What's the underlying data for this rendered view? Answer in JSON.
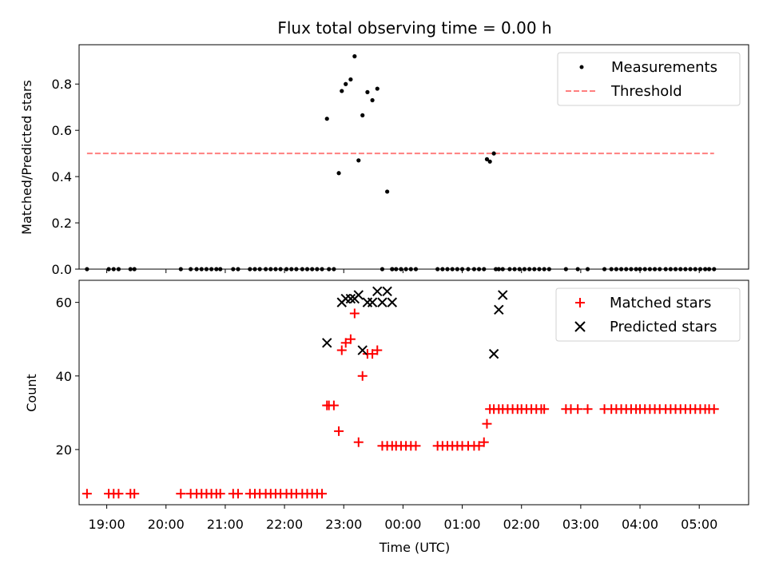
{
  "chart_data": [
    {
      "type": "scatter",
      "title": "Flux total observing time = 0.00 h",
      "xlabel": "",
      "ylabel": "Matched/Predicted stars",
      "xlim": [
        "18:32",
        "05:50"
      ],
      "ylim": [
        0,
        0.97
      ],
      "yticks": [
        0.0,
        0.2,
        0.4,
        0.6,
        0.8
      ],
      "ytick_labels": [
        "0.0",
        "0.2",
        "0.4",
        "0.6",
        "0.8"
      ],
      "legend_position": "top-right",
      "series": [
        {
          "name": "Measurements",
          "kind": "scatter",
          "color": "#000000",
          "x": [
            "18:40",
            "19:02",
            "19:07",
            "19:12",
            "19:24",
            "19:28",
            "20:15",
            "20:25",
            "20:31",
            "20:36",
            "20:41",
            "20:46",
            "20:51",
            "20:55",
            "21:08",
            "21:13",
            "21:25",
            "21:30",
            "21:35",
            "21:41",
            "21:46",
            "21:51",
            "21:56",
            "22:02",
            "22:07",
            "22:12",
            "22:18",
            "22:23",
            "22:28",
            "22:33",
            "22:38",
            "22:43",
            "22:45",
            "22:50",
            "22:55",
            "22:58",
            "23:02",
            "23:07",
            "23:11",
            "23:15",
            "23:19",
            "23:24",
            "23:29",
            "23:34",
            "23:39",
            "23:44",
            "23:49",
            "23:49",
            "23:53",
            "23:58",
            "00:03",
            "00:08",
            "00:13",
            "00:35",
            "00:40",
            "00:45",
            "00:50",
            "00:55",
            "01:00",
            "01:06",
            "01:12",
            "01:17",
            "01:22",
            "01:25",
            "01:28",
            "01:32",
            "01:34",
            "01:37",
            "01:41",
            "01:48",
            "01:53",
            "01:58",
            "02:03",
            "02:08",
            "02:13",
            "02:18",
            "02:23",
            "02:28",
            "02:45",
            "02:57",
            "03:07",
            "03:24",
            "03:31",
            "03:36",
            "03:41",
            "03:46",
            "03:51",
            "03:56",
            "04:00",
            "04:05",
            "04:10",
            "04:15",
            "04:20",
            "04:26",
            "04:31",
            "04:36",
            "04:41",
            "04:46",
            "04:51",
            "04:56",
            "05:01",
            "05:06",
            "05:10",
            "05:15"
          ],
          "y": [
            0,
            0,
            0,
            0,
            0,
            0,
            0,
            0,
            0,
            0,
            0,
            0,
            0,
            0,
            0,
            0,
            0,
            0,
            0,
            0,
            0,
            0,
            0,
            0,
            0,
            0,
            0,
            0,
            0,
            0,
            0,
            0.65,
            0,
            0,
            0.415,
            0.77,
            0.8,
            0.82,
            0.92,
            0.47,
            0.665,
            0.765,
            0.73,
            0.78,
            0,
            0.335,
            0,
            0,
            0,
            0,
            0,
            0,
            0,
            0,
            0,
            0,
            0,
            0,
            0,
            0,
            0,
            0,
            0,
            0.475,
            0.465,
            0.5,
            0,
            0,
            0,
            0,
            0,
            0,
            0,
            0,
            0,
            0,
            0,
            0,
            0,
            0,
            0,
            0,
            0,
            0,
            0,
            0,
            0,
            0,
            0,
            0,
            0,
            0,
            0,
            0,
            0,
            0,
            0,
            0,
            0,
            0,
            0,
            0,
            0,
            0
          ],
          "y_note": "measurement values"
        },
        {
          "name": "Threshold",
          "kind": "dashed-line",
          "color": "#ff7f7f",
          "x": [
            "18:40",
            "05:15"
          ],
          "y": [
            0.5,
            0.5
          ]
        }
      ]
    },
    {
      "type": "scatter",
      "title": "",
      "xlabel": "Time (UTC)",
      "ylabel": "Count",
      "xlim": [
        "18:32",
        "05:50"
      ],
      "ylim": [
        5,
        66
      ],
      "yticks": [
        20,
        40,
        60
      ],
      "ytick_labels": [
        "20",
        "40",
        "60"
      ],
      "xticks": [
        "19:00",
        "20:00",
        "21:00",
        "22:00",
        "23:00",
        "00:00",
        "01:00",
        "02:00",
        "03:00",
        "04:00",
        "05:00"
      ],
      "xtick_labels": [
        "19:00",
        "20:00",
        "21:00",
        "22:00",
        "23:00",
        "00:00",
        "01:00",
        "02:00",
        "03:00",
        "04:00",
        "05:00"
      ],
      "legend_position": "top-right",
      "series": [
        {
          "name": "Matched stars",
          "kind": "plus",
          "color": "#ff0000",
          "x": [
            "18:40",
            "19:02",
            "19:07",
            "19:12",
            "19:24",
            "19:28",
            "20:15",
            "20:25",
            "20:31",
            "20:36",
            "20:41",
            "20:46",
            "20:51",
            "20:55",
            "21:08",
            "21:13",
            "21:25",
            "21:30",
            "21:35",
            "21:41",
            "21:46",
            "21:51",
            "21:56",
            "22:02",
            "22:07",
            "22:12",
            "22:18",
            "22:23",
            "22:28",
            "22:33",
            "22:38",
            "22:43",
            "22:45",
            "22:50",
            "22:55",
            "22:58",
            "23:02",
            "23:07",
            "23:11",
            "23:15",
            "23:19",
            "23:24",
            "23:29",
            "23:34",
            "23:39",
            "23:44",
            "23:49",
            "23:53",
            "23:58",
            "00:03",
            "00:08",
            "00:13",
            "00:35",
            "00:40",
            "00:45",
            "00:50",
            "00:55",
            "01:00",
            "01:06",
            "01:12",
            "01:17",
            "01:22",
            "01:25",
            "01:28",
            "01:32",
            "01:37",
            "01:41",
            "01:46",
            "01:51",
            "01:56",
            "02:00",
            "02:05",
            "02:10",
            "02:15",
            "02:20",
            "02:23",
            "02:45",
            "02:50",
            "02:57",
            "03:07",
            "03:24",
            "03:31",
            "03:36",
            "03:41",
            "03:46",
            "03:51",
            "03:56",
            "04:00",
            "04:05",
            "04:10",
            "04:15",
            "04:20",
            "04:26",
            "04:31",
            "04:36",
            "04:41",
            "04:46",
            "04:51",
            "04:56",
            "05:01",
            "05:06",
            "05:10",
            "05:15"
          ],
          "y": [
            8,
            8,
            8,
            8,
            8,
            8,
            8,
            8,
            8,
            8,
            8,
            8,
            8,
            8,
            8,
            8,
            8,
            8,
            8,
            8,
            8,
            8,
            8,
            8,
            8,
            8,
            8,
            8,
            8,
            8,
            8,
            32,
            32,
            32,
            25,
            47,
            49,
            50,
            57,
            22,
            40,
            46,
            46,
            47,
            21,
            21,
            21,
            21,
            21,
            21,
            21,
            21,
            21,
            21,
            21,
            21,
            21,
            21,
            21,
            21,
            21,
            22,
            27,
            31,
            31,
            31,
            31,
            31,
            31,
            31,
            31,
            31,
            31,
            31,
            31,
            31,
            31,
            31,
            31,
            31,
            31,
            31,
            31,
            31,
            31,
            31,
            31,
            31,
            31,
            31,
            31,
            31,
            31,
            31,
            31,
            31,
            31,
            31,
            31,
            31,
            31,
            31,
            31
          ]
        },
        {
          "name": "Predicted stars",
          "kind": "x",
          "color": "#000000",
          "x": [
            "22:43",
            "22:58",
            "23:02",
            "23:07",
            "23:11",
            "23:15",
            "23:19",
            "23:24",
            "23:29",
            "23:34",
            "23:39",
            "23:44",
            "23:49",
            "01:32",
            "01:37",
            "01:41"
          ],
          "y": [
            49,
            60,
            61,
            61,
            61,
            62,
            47,
            60,
            60,
            63,
            60,
            63,
            60,
            46,
            58,
            62
          ]
        }
      ]
    }
  ]
}
